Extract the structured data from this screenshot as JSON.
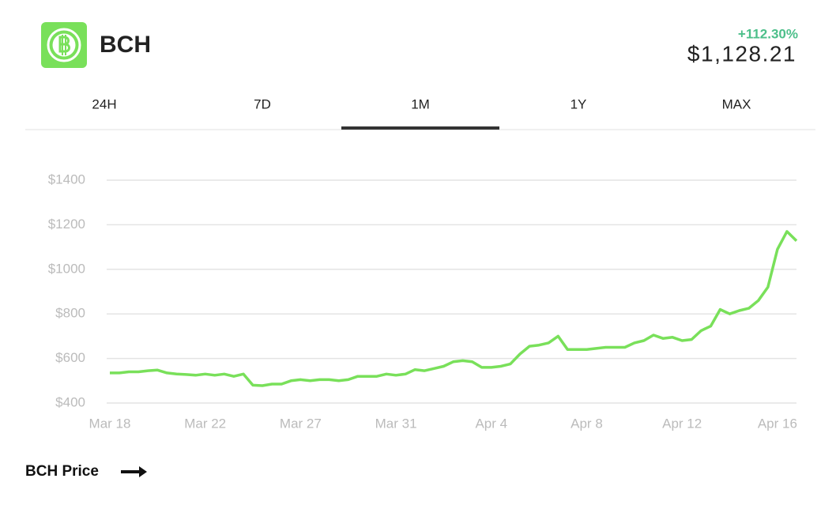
{
  "header": {
    "title": "BCH",
    "change": "+112.30%",
    "price": "$1,128.21"
  },
  "tabs": {
    "items": [
      "24H",
      "7D",
      "1M",
      "1Y",
      "MAX"
    ],
    "selected": 2
  },
  "chart_data": {
    "type": "line",
    "color": "#79e05a",
    "grid": true,
    "categories": [
      "Mar 18",
      null,
      null,
      null,
      null,
      null,
      null,
      null,
      null,
      null,
      "Mar 22",
      null,
      null,
      null,
      null,
      null,
      null,
      null,
      null,
      null,
      "Mar 27",
      null,
      null,
      null,
      null,
      null,
      null,
      null,
      null,
      null,
      "Mar 31",
      null,
      null,
      null,
      null,
      null,
      null,
      null,
      null,
      null,
      "Apr 4",
      null,
      null,
      null,
      null,
      null,
      null,
      null,
      null,
      null,
      "Apr 8",
      null,
      null,
      null,
      null,
      null,
      null,
      null,
      null,
      null,
      "Apr 12",
      null,
      null,
      null,
      null,
      null,
      null,
      null,
      null,
      null,
      "Apr 16",
      null,
      null
    ],
    "values": [
      535,
      535,
      540,
      540,
      545,
      548,
      535,
      530,
      528,
      525,
      530,
      525,
      530,
      520,
      530,
      480,
      478,
      485,
      485,
      500,
      505,
      500,
      505,
      505,
      500,
      505,
      520,
      520,
      520,
      530,
      525,
      530,
      550,
      545,
      555,
      565,
      585,
      590,
      585,
      560,
      560,
      565,
      575,
      620,
      655,
      660,
      670,
      700,
      640,
      640,
      640,
      645,
      650,
      650,
      650,
      670,
      680,
      705,
      690,
      695,
      680,
      685,
      725,
      745,
      820,
      800,
      815,
      825,
      860,
      920,
      1090,
      1170,
      1128
    ],
    "ylim": [
      400,
      1400
    ],
    "yticks": [
      {
        "value": 400,
        "label": "$400"
      },
      {
        "value": 600,
        "label": "$600"
      },
      {
        "value": 800,
        "label": "$800"
      },
      {
        "value": 1000,
        "label": "$1000"
      },
      {
        "value": 1200,
        "label": "$1200"
      },
      {
        "value": 1400,
        "label": "$1400"
      }
    ]
  },
  "footer": {
    "link": "BCH Price"
  }
}
